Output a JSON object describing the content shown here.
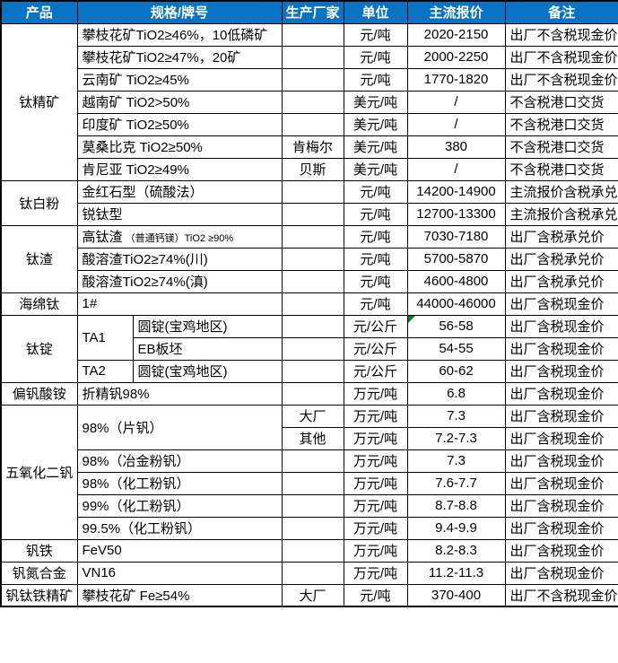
{
  "theme": {
    "header_bg": "#0a73c4",
    "header_fg": "#ffffff",
    "grid_border": "#000000",
    "marker_green": "#107C10",
    "text_color": "#000000",
    "cell_bg": "#ffffff"
  },
  "table": {
    "columns": [
      {
        "key": "product",
        "label": "产品"
      },
      {
        "key": "spec",
        "label": "规格/牌号",
        "colspan": 2
      },
      {
        "key": "mfr",
        "label": "生产厂家"
      },
      {
        "key": "unit",
        "label": "单位"
      },
      {
        "key": "price",
        "label": "主流报价"
      },
      {
        "key": "note",
        "label": "备注"
      }
    ],
    "rows": [
      {
        "cells": [
          {
            "col": "product",
            "text": "钛精矿",
            "rowspan": 7
          },
          {
            "col": "spec",
            "text": "攀枝花矿TiO2≥46%，10低磷矿",
            "colspan": 2
          },
          {
            "col": "mfr",
            "text": ""
          },
          {
            "col": "unit",
            "text": "元/吨"
          },
          {
            "col": "price",
            "text": "2020-2150"
          },
          {
            "col": "note",
            "text": "出厂不含税现金价"
          }
        ]
      },
      {
        "cells": [
          {
            "col": "spec",
            "text": "攀枝花矿TiO2≥47%，20矿",
            "colspan": 2
          },
          {
            "col": "mfr",
            "text": ""
          },
          {
            "col": "unit",
            "text": "元/吨"
          },
          {
            "col": "price",
            "text": "2000-2250"
          },
          {
            "col": "note",
            "text": "出厂不含税现金价"
          }
        ]
      },
      {
        "cells": [
          {
            "col": "spec",
            "text": "云南矿 TiO2≥45%",
            "colspan": 2
          },
          {
            "col": "mfr",
            "text": ""
          },
          {
            "col": "unit",
            "text": "元/吨"
          },
          {
            "col": "price",
            "text": "1770-1820"
          },
          {
            "col": "note",
            "text": "出厂不含税现金价"
          }
        ]
      },
      {
        "cells": [
          {
            "col": "spec",
            "text": "越南矿 TiO2>50%",
            "colspan": 2
          },
          {
            "col": "mfr",
            "text": ""
          },
          {
            "col": "unit",
            "text": "美元/吨"
          },
          {
            "col": "price",
            "text": "/"
          },
          {
            "col": "note",
            "text": "不含税港口交货"
          }
        ]
      },
      {
        "cells": [
          {
            "col": "spec",
            "text": "印度矿 TiO2≥50%",
            "colspan": 2
          },
          {
            "col": "mfr",
            "text": ""
          },
          {
            "col": "unit",
            "text": "美元/吨"
          },
          {
            "col": "price",
            "text": "/"
          },
          {
            "col": "note",
            "text": "不含税港口交货"
          }
        ]
      },
      {
        "cells": [
          {
            "col": "spec",
            "text": "莫桑比克 TiO2≥50%",
            "colspan": 2
          },
          {
            "col": "mfr",
            "text": "肯梅尔"
          },
          {
            "col": "unit",
            "text": "美元/吨"
          },
          {
            "col": "price",
            "text": "380"
          },
          {
            "col": "note",
            "text": "不含税港口交货"
          }
        ]
      },
      {
        "cells": [
          {
            "col": "spec",
            "text": "肯尼亚 TiO2≥49%",
            "colspan": 2
          },
          {
            "col": "mfr",
            "text": "贝斯"
          },
          {
            "col": "unit",
            "text": "美元/吨"
          },
          {
            "col": "price",
            "text": "/"
          },
          {
            "col": "note",
            "text": "不含税港口交货"
          }
        ]
      },
      {
        "cells": [
          {
            "col": "product",
            "text": "钛白粉",
            "rowspan": 2
          },
          {
            "col": "spec",
            "text": "金红石型（硫酸法）",
            "colspan": 2
          },
          {
            "col": "mfr",
            "text": ""
          },
          {
            "col": "unit",
            "text": "元/吨"
          },
          {
            "col": "price",
            "text": "14200-14900"
          },
          {
            "col": "note",
            "text": "主流报价含税承兑"
          }
        ]
      },
      {
        "cells": [
          {
            "col": "spec",
            "text": "锐钛型",
            "colspan": 2
          },
          {
            "col": "mfr",
            "text": ""
          },
          {
            "col": "unit",
            "text": "元/吨"
          },
          {
            "col": "price",
            "text": "12700-13300"
          },
          {
            "col": "note",
            "text": "主流报价含税承兑"
          }
        ]
      },
      {
        "cells": [
          {
            "col": "product",
            "text": "钛渣",
            "rowspan": 3
          },
          {
            "col": "spec",
            "text": "高钛渣",
            "small": "（普通钙镁）TiO2 ≥90%",
            "colspan": 2
          },
          {
            "col": "mfr",
            "text": ""
          },
          {
            "col": "unit",
            "text": "元/吨"
          },
          {
            "col": "price",
            "text": "7030-7180"
          },
          {
            "col": "note",
            "text": "出厂含税承兑价"
          }
        ]
      },
      {
        "cells": [
          {
            "col": "spec",
            "text": "酸溶渣TiO2≥74%(川)",
            "colspan": 2
          },
          {
            "col": "mfr",
            "text": ""
          },
          {
            "col": "unit",
            "text": "元/吨"
          },
          {
            "col": "price",
            "text": "5700-5870"
          },
          {
            "col": "note",
            "text": "出厂含税承兑价"
          }
        ]
      },
      {
        "cells": [
          {
            "col": "spec",
            "text": "酸溶渣TiO2≥74%(滇)",
            "colspan": 2
          },
          {
            "col": "mfr",
            "text": ""
          },
          {
            "col": "unit",
            "text": "元/吨"
          },
          {
            "col": "price",
            "text": "4600-4800"
          },
          {
            "col": "note",
            "text": "出厂含税承兑价"
          }
        ]
      },
      {
        "cells": [
          {
            "col": "product",
            "text": "海绵钛"
          },
          {
            "col": "spec",
            "text": "1#",
            "colspan": 2
          },
          {
            "col": "mfr",
            "text": ""
          },
          {
            "col": "unit",
            "text": "元/吨"
          },
          {
            "col": "price",
            "text": "44000-46000"
          },
          {
            "col": "note",
            "text": "出厂含税现金价"
          }
        ]
      },
      {
        "cells": [
          {
            "col": "product",
            "text": "钛锭",
            "rowspan": 3
          },
          {
            "col": "specA",
            "text": "TA1",
            "rowspan": 2
          },
          {
            "col": "specB",
            "text": "圆锭(宝鸡地区)"
          },
          {
            "col": "mfr",
            "text": ""
          },
          {
            "col": "unit",
            "text": "元/公斤"
          },
          {
            "col": "price",
            "text": "56-58",
            "marker": true
          },
          {
            "col": "note",
            "text": "出厂含税现金价"
          }
        ]
      },
      {
        "cells": [
          {
            "col": "specB",
            "text": "EB板坯"
          },
          {
            "col": "mfr",
            "text": ""
          },
          {
            "col": "unit",
            "text": "元/公斤"
          },
          {
            "col": "price",
            "text": "54-55"
          },
          {
            "col": "note",
            "text": "出厂含税现金价"
          }
        ]
      },
      {
        "cells": [
          {
            "col": "specA",
            "text": "TA2"
          },
          {
            "col": "specB",
            "text": "圆锭(宝鸡地区)"
          },
          {
            "col": "mfr",
            "text": ""
          },
          {
            "col": "unit",
            "text": "元/公斤"
          },
          {
            "col": "price",
            "text": "60-62"
          },
          {
            "col": "note",
            "text": "出厂含税现金价"
          }
        ]
      },
      {
        "cells": [
          {
            "col": "product",
            "text": "偏钒酸铵"
          },
          {
            "col": "spec",
            "text": "折精钒98%",
            "colspan": 2
          },
          {
            "col": "mfr",
            "text": ""
          },
          {
            "col": "unit",
            "text": "万元/吨"
          },
          {
            "col": "price",
            "text": "6.8"
          },
          {
            "col": "note",
            "text": "出厂含税现金价"
          }
        ]
      },
      {
        "cells": [
          {
            "col": "product",
            "text": "五氧化二钒",
            "rowspan": 6
          },
          {
            "col": "spec",
            "text": "98%（片钒）",
            "colspan": 2,
            "rowspan": 2
          },
          {
            "col": "mfr",
            "text": "大厂"
          },
          {
            "col": "unit",
            "text": "万元/吨"
          },
          {
            "col": "price",
            "text": "7.3"
          },
          {
            "col": "note",
            "text": "出厂含税现金价"
          }
        ]
      },
      {
        "cells": [
          {
            "col": "mfr",
            "text": "其他"
          },
          {
            "col": "unit",
            "text": "万元/吨"
          },
          {
            "col": "price",
            "text": "7.2-7.3"
          },
          {
            "col": "note",
            "text": "出厂含税现金价"
          }
        ]
      },
      {
        "cells": [
          {
            "col": "spec",
            "text": "98%（冶金粉钒）",
            "colspan": 2
          },
          {
            "col": "mfr",
            "text": ""
          },
          {
            "col": "unit",
            "text": "万元/吨"
          },
          {
            "col": "price",
            "text": "7.3"
          },
          {
            "col": "note",
            "text": "出厂含税现金价"
          }
        ]
      },
      {
        "cells": [
          {
            "col": "spec",
            "text": "98%（化工粉钒）",
            "colspan": 2
          },
          {
            "col": "mfr",
            "text": ""
          },
          {
            "col": "unit",
            "text": "万元/吨"
          },
          {
            "col": "price",
            "text": "7.6-7.7"
          },
          {
            "col": "note",
            "text": "出厂含税现金价"
          }
        ]
      },
      {
        "cells": [
          {
            "col": "spec",
            "text": "99%（化工粉钒）",
            "colspan": 2
          },
          {
            "col": "mfr",
            "text": ""
          },
          {
            "col": "unit",
            "text": "万元/吨"
          },
          {
            "col": "price",
            "text": "8.7-8.8"
          },
          {
            "col": "note",
            "text": "出厂含税现金价"
          }
        ]
      },
      {
        "cells": [
          {
            "col": "spec",
            "text": "99.5%（化工粉钒）",
            "colspan": 2
          },
          {
            "col": "mfr",
            "text": ""
          },
          {
            "col": "unit",
            "text": "万元/吨"
          },
          {
            "col": "price",
            "text": "9.4-9.9"
          },
          {
            "col": "note",
            "text": "出厂含税现金价"
          }
        ]
      },
      {
        "cells": [
          {
            "col": "product",
            "text": "钒铁"
          },
          {
            "col": "spec",
            "text": "FeV50",
            "colspan": 2
          },
          {
            "col": "mfr",
            "text": ""
          },
          {
            "col": "unit",
            "text": "万元/吨"
          },
          {
            "col": "price",
            "text": "8.2-8.3"
          },
          {
            "col": "note",
            "text": "出厂含税现金价"
          }
        ]
      },
      {
        "cells": [
          {
            "col": "product",
            "text": "钒氮合金"
          },
          {
            "col": "spec",
            "text": "VN16",
            "colspan": 2
          },
          {
            "col": "mfr",
            "text": ""
          },
          {
            "col": "unit",
            "text": "万元/吨"
          },
          {
            "col": "price",
            "text": "11.2-11.3"
          },
          {
            "col": "note",
            "text": "出厂含税现金价"
          }
        ]
      },
      {
        "cells": [
          {
            "col": "product",
            "text": "钒钛铁精矿"
          },
          {
            "col": "spec",
            "text": "攀枝花矿 Fe≥54%",
            "colspan": 2
          },
          {
            "col": "mfr",
            "text": "大厂"
          },
          {
            "col": "unit",
            "text": "元/吨"
          },
          {
            "col": "price",
            "text": "370-400"
          },
          {
            "col": "note",
            "text": "出厂不含税现金价"
          }
        ]
      }
    ]
  }
}
